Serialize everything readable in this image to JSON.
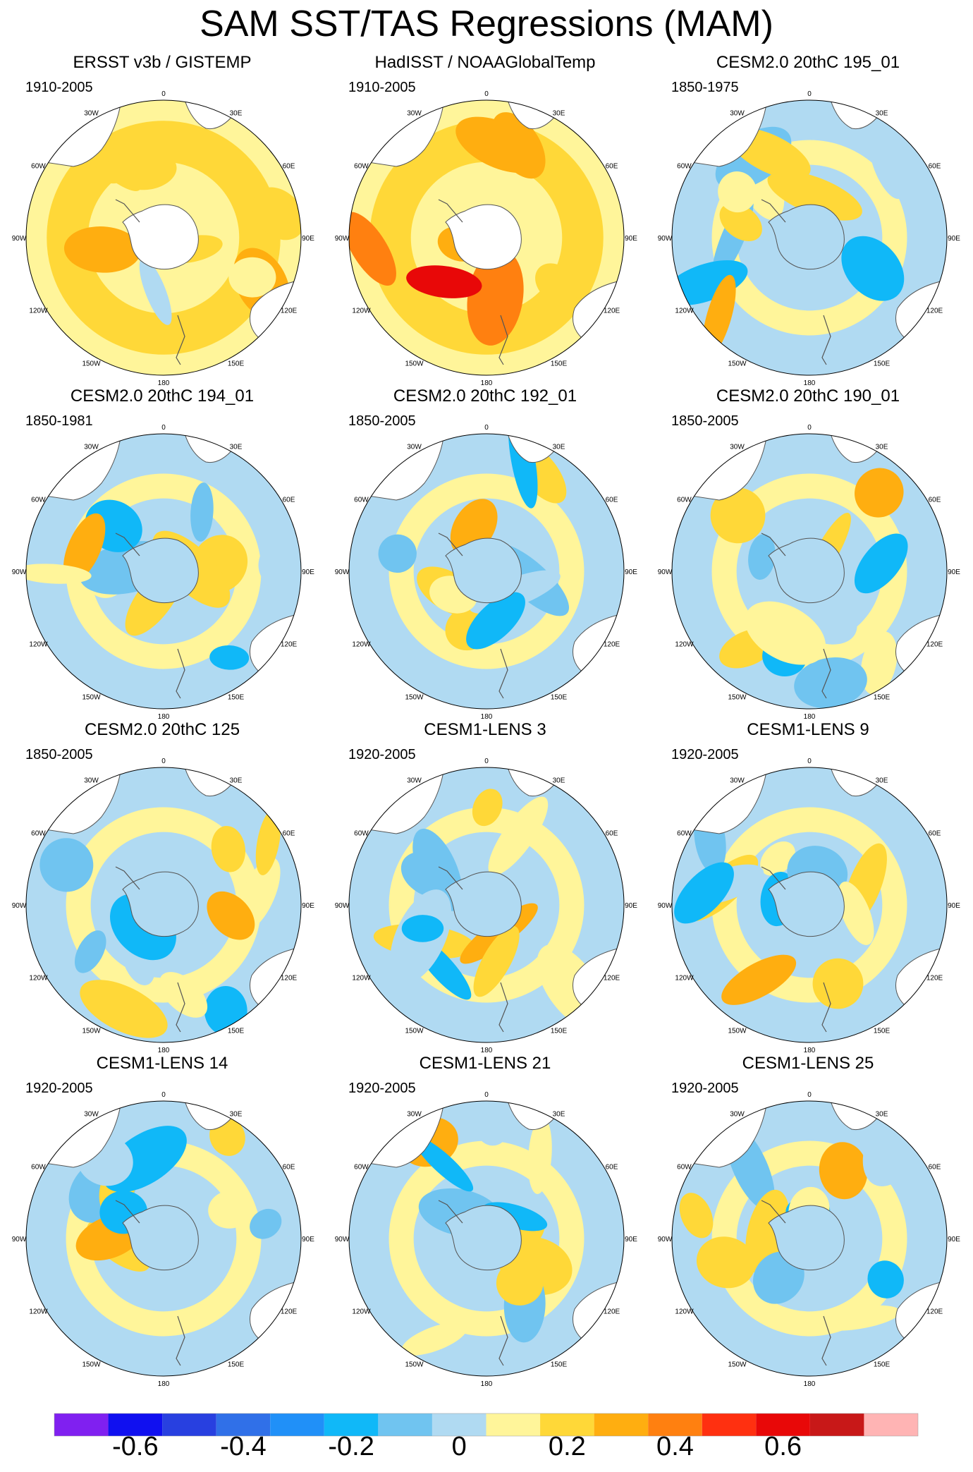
{
  "title": "SAM SST/TAS Regressions (MAM)",
  "chart_data": {
    "type": "polar-contour-maps",
    "projection": "south-polar stereographic",
    "longitude_labels": [
      "0",
      "30E",
      "60E",
      "90E",
      "120E",
      "150E",
      "180",
      "150W",
      "120W",
      "90W",
      "60W",
      "30W"
    ],
    "panels": [
      {
        "title": "ERSST v3b / GISTEMP",
        "period": "1910-2005",
        "dominant": "warm",
        "polar_mask": true
      },
      {
        "title": "HadISST / NOAAGlobalTemp",
        "period": "1910-2005",
        "dominant": "warm-strong",
        "polar_mask": true
      },
      {
        "title": "CESM2.0 20thC 195_01",
        "period": "1850-1975",
        "dominant": "mixed"
      },
      {
        "title": "CESM2.0 20thC 194_01",
        "period": "1850-1981",
        "dominant": "mixed"
      },
      {
        "title": "CESM2.0 20thC 192_01",
        "period": "1850-2005",
        "dominant": "mixed"
      },
      {
        "title": "CESM2.0 20thC 190_01",
        "period": "1850-2005",
        "dominant": "mixed"
      },
      {
        "title": "CESM2.0 20thC 125",
        "period": "1850-2005",
        "dominant": "mixed"
      },
      {
        "title": "CESM1-LENS 3",
        "period": "1920-2005",
        "dominant": "mixed"
      },
      {
        "title": "CESM1-LENS 9",
        "period": "1920-2005",
        "dominant": "mixed"
      },
      {
        "title": "CESM1-LENS 14",
        "period": "1920-2005",
        "dominant": "mixed"
      },
      {
        "title": "CESM1-LENS 21",
        "period": "1920-2005",
        "dominant": "mixed"
      },
      {
        "title": "CESM1-LENS 25",
        "period": "1920-2005",
        "dominant": "mixed"
      }
    ],
    "colorbar": {
      "colors": [
        "#8020f0",
        "#1010f0",
        "#2840e0",
        "#3070e8",
        "#2090f8",
        "#10b8f8",
        "#70c4f0",
        "#b0daf2",
        "#fff59a",
        "#ffd838",
        "#ffae10",
        "#ff8010",
        "#ff3010",
        "#e80808",
        "#c81818",
        "#ffb4b4"
      ],
      "ticks": [
        "-0.6",
        "-0.4",
        "-0.2",
        "0",
        "0.2",
        "0.4",
        "0.6"
      ],
      "tick_values": [
        -0.6,
        -0.4,
        -0.2,
        0,
        0.2,
        0.4,
        0.6
      ],
      "range": [
        -0.75,
        0.8
      ]
    }
  }
}
